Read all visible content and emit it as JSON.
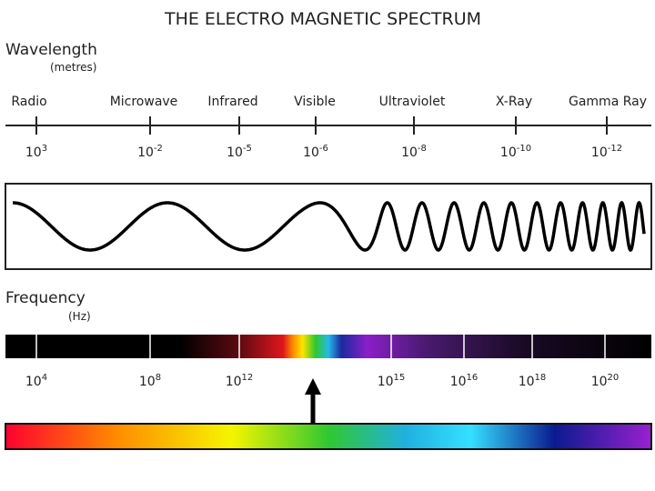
{
  "title": "THE ELECTRO MAGNETIC SPECTRUM",
  "wavelength": {
    "label": "Wavelength",
    "unit": "(metres)",
    "bands": [
      {
        "name": "Radio",
        "base": "10",
        "exponent": "3"
      },
      {
        "name": "Microwave",
        "base": "10",
        "exponent": "-2"
      },
      {
        "name": "Infrared",
        "base": "10",
        "exponent": "-5"
      },
      {
        "name": "Visible",
        "base": "10",
        "exponent": "-6"
      },
      {
        "name": "Ultraviolet",
        "base": "10",
        "exponent": "-8"
      },
      {
        "name": "X-Ray",
        "base": "10",
        "exponent": "-10"
      },
      {
        "name": "Gamma Ray",
        "base": "10",
        "exponent": "-12"
      }
    ]
  },
  "frequency": {
    "label": "Frequency",
    "unit": "(Hz)",
    "ticks": [
      {
        "base": "10",
        "exponent": "4"
      },
      {
        "base": "10",
        "exponent": "8"
      },
      {
        "base": "10",
        "exponent": "12"
      },
      {
        "base": "10",
        "exponent": "15"
      },
      {
        "base": "10",
        "exponent": "16"
      },
      {
        "base": "10",
        "exponent": "18"
      },
      {
        "base": "10",
        "exponent": "20"
      }
    ]
  }
}
